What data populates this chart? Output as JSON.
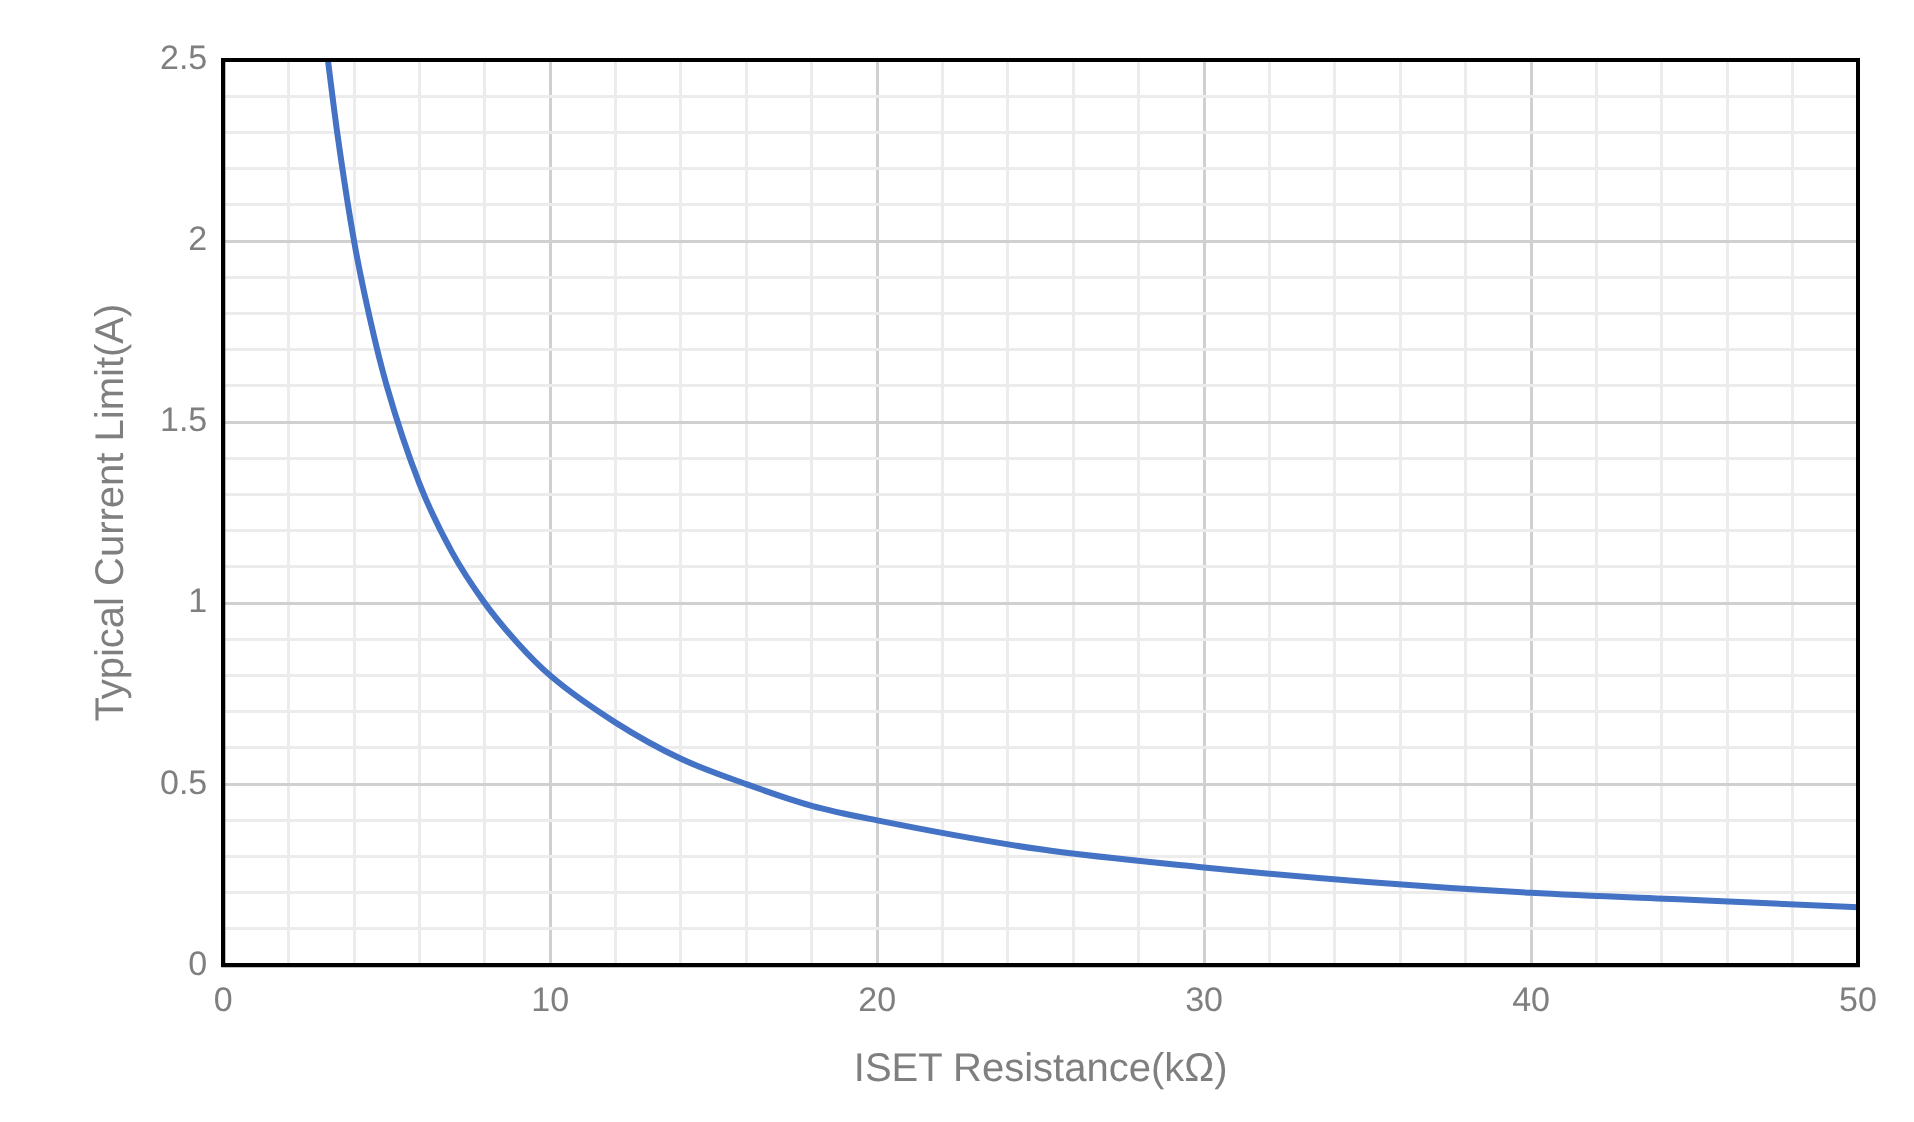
{
  "chart_data": {
    "type": "line",
    "xlabel": "ISET Resistance(kΩ)",
    "ylabel": "Typical Current Limit(A)",
    "x": [
      3.2,
      3.5,
      4,
      4.5,
      5,
      6,
      7,
      8,
      9,
      10,
      12,
      14,
      16,
      18,
      20,
      25,
      30,
      35,
      40,
      45,
      50
    ],
    "series": [
      {
        "color": "#4472c4",
        "values": [
          2.5,
          2.29,
          2.0,
          1.78,
          1.6,
          1.33,
          1.14,
          1.0,
          0.89,
          0.8,
          0.67,
          0.57,
          0.5,
          0.44,
          0.4,
          0.32,
          0.27,
          0.23,
          0.2,
          0.18,
          0.16
        ]
      }
    ],
    "xlim": [
      0,
      50
    ],
    "xticks": [
      0,
      {
        "value": 2,
        "label": null
      },
      {
        "value": 4,
        "label": null
      },
      {
        "value": 6,
        "label": null
      },
      {
        "value": 8,
        "label": null
      },
      10,
      {
        "value": 12,
        "label": null
      },
      {
        "value": 14,
        "label": null
      },
      {
        "value": 16,
        "label": null
      },
      {
        "value": 18,
        "label": null
      },
      20,
      {
        "value": 22,
        "label": null
      },
      {
        "value": 24,
        "label": null
      },
      {
        "value": 26,
        "label": null
      },
      {
        "value": 28,
        "label": null
      },
      30,
      {
        "value": 32,
        "label": null
      },
      {
        "value": 34,
        "label": null
      },
      {
        "value": 36,
        "label": null
      },
      {
        "value": 38,
        "label": null
      },
      40,
      {
        "value": 42,
        "label": null
      },
      {
        "value": 44,
        "label": null
      },
      {
        "value": 46,
        "label": null
      },
      {
        "value": 48,
        "label": null
      },
      50
    ],
    "ylim": [
      0,
      2.5
    ],
    "yticks": [
      0,
      {
        "value": 0.1,
        "label": null
      },
      {
        "value": 0.2,
        "label": null
      },
      {
        "value": 0.3,
        "label": null
      },
      {
        "value": 0.4,
        "label": null
      },
      0.5,
      {
        "value": 0.6,
        "label": null
      },
      {
        "value": 0.7,
        "label": null
      },
      {
        "value": 0.8,
        "label": null
      },
      {
        "value": 0.9,
        "label": null
      },
      1,
      {
        "value": 1.1,
        "label": null
      },
      {
        "value": 1.2,
        "label": null
      },
      {
        "value": 1.3,
        "label": null
      },
      {
        "value": 1.4,
        "label": null
      },
      1.5,
      {
        "value": 1.6,
        "label": null
      },
      {
        "value": 1.7,
        "label": null
      },
      {
        "value": 1.8,
        "label": null
      },
      {
        "value": 1.9,
        "label": null
      },
      2,
      {
        "value": 2.1,
        "label": null
      },
      {
        "value": 2.2,
        "label": null
      },
      {
        "value": 2.3,
        "label": null
      },
      {
        "value": 2.4,
        "label": null
      },
      2.5
    ],
    "grid": true,
    "marker": "none",
    "line_style": "solid",
    "legend": false
  }
}
